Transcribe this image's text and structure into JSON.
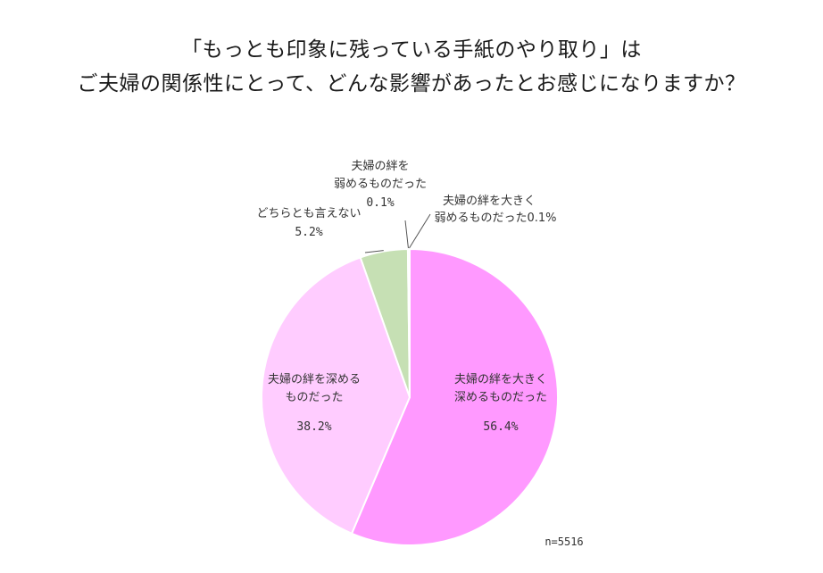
{
  "chart_data": {
    "type": "pie",
    "title_lines": [
      "「もっとも印象に残っている手紙のやり取り」は",
      "ご夫婦の関係性にとって、どんな影響があったとお感じになりますか？"
    ],
    "slices": [
      {
        "name": "夫婦の絆を大きく深めるものだった",
        "name_lines": [
          "夫婦の絆を大きく",
          "深めるものだった"
        ],
        "value": 56.4,
        "value_label": "56.4%",
        "color": "#ff99ff"
      },
      {
        "name": "夫婦の絆を深めるものだった",
        "name_lines": [
          "夫婦の絆を深める",
          "ものだった"
        ],
        "value": 38.2,
        "value_label": "38.2%",
        "color": "#ffccff"
      },
      {
        "name": "どちらとも言えない",
        "name_lines": [
          "どちらとも言えない"
        ],
        "value": 5.2,
        "value_label": "5.2%",
        "color": "#c6e0b4"
      },
      {
        "name": "夫婦の絆を弱めるものだった",
        "name_lines": [
          "夫婦の絆を",
          "弱めるものだった"
        ],
        "value": 0.1,
        "value_label": "0.1%",
        "color": "#bdd7ee"
      },
      {
        "name": "夫婦の絆を大きく弱めるものだった",
        "name_lines": [
          "夫婦の絆を大きく",
          "弱めるものだった0.1%"
        ],
        "value": 0.1,
        "value_label": "0.1%",
        "color": "#9dc3e6"
      }
    ],
    "sample_size": "n=5516",
    "start_angle": "12 o'clock",
    "direction": "clockwise",
    "legend": "none"
  }
}
